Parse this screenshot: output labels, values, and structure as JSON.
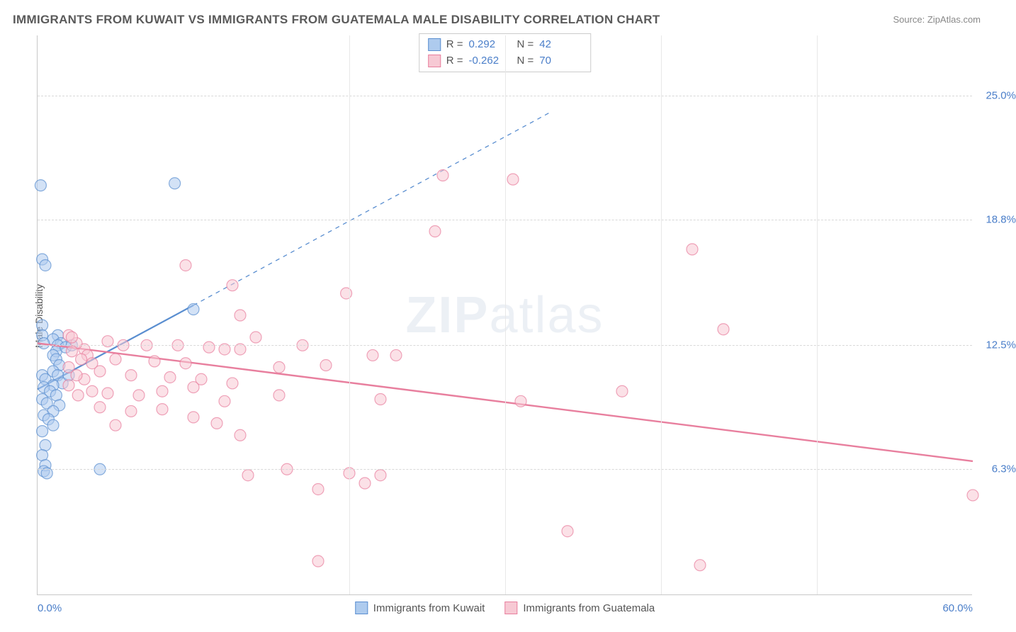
{
  "chart": {
    "type": "scatter",
    "title": "IMMIGRANTS FROM KUWAIT VS IMMIGRANTS FROM GUATEMALA MALE DISABILITY CORRELATION CHART",
    "source": "Source: ZipAtlas.com",
    "watermark_zip": "ZIP",
    "watermark_atlas": "atlas",
    "title_fontsize": 17,
    "title_color": "#5a5a5a",
    "source_color": "#888888",
    "background_color": "#ffffff",
    "grid_color": "#d8d8d8",
    "axis_color": "#c8c8c8",
    "tick_label_color": "#4a7ec9",
    "ylabel": "Male Disability",
    "ylabel_color": "#555555",
    "xlim": [
      0,
      60
    ],
    "ylim": [
      0,
      28
    ],
    "xticks": [
      0,
      60
    ],
    "xtick_labels": [
      "0.0%",
      "60.0%"
    ],
    "yticks": [
      6.3,
      12.5,
      18.8,
      25.0
    ],
    "ytick_labels": [
      "6.3%",
      "12.5%",
      "18.8%",
      "25.0%"
    ],
    "xgrid_positions": [
      20,
      30,
      40,
      50
    ],
    "marker_radius": 8,
    "marker_opacity": 0.55,
    "marker_stroke_width": 1.2,
    "series": [
      {
        "name": "Immigrants from Kuwait",
        "color_fill": "#aecbee",
        "color_stroke": "#5a8ed0",
        "r_label": "R =",
        "r_value": "0.292",
        "n_label": "N =",
        "n_value": "42",
        "trend": {
          "x1": 0,
          "y1": 10.3,
          "x2": 10,
          "y2": 14.5,
          "dash_x2": 33,
          "dash_y2": 24.2,
          "width": 2.2
        },
        "points": [
          [
            0.2,
            20.5
          ],
          [
            0.3,
            16.8
          ],
          [
            0.5,
            16.5
          ],
          [
            0.3,
            13.5
          ],
          [
            0.3,
            13.0
          ],
          [
            1.3,
            13.0
          ],
          [
            1.0,
            12.8
          ],
          [
            0.4,
            12.6
          ],
          [
            1.5,
            12.6
          ],
          [
            1.3,
            12.5
          ],
          [
            1.2,
            12.2
          ],
          [
            1.8,
            12.4
          ],
          [
            1.0,
            12.0
          ],
          [
            1.2,
            11.8
          ],
          [
            1.4,
            11.5
          ],
          [
            1.0,
            11.2
          ],
          [
            1.3,
            11.0
          ],
          [
            0.3,
            11.0
          ],
          [
            0.5,
            10.8
          ],
          [
            1.6,
            10.6
          ],
          [
            1.0,
            10.5
          ],
          [
            0.4,
            10.4
          ],
          [
            0.8,
            10.2
          ],
          [
            1.2,
            10.0
          ],
          [
            0.3,
            9.8
          ],
          [
            0.6,
            9.6
          ],
          [
            1.4,
            9.5
          ],
          [
            1.0,
            9.2
          ],
          [
            0.4,
            9.0
          ],
          [
            0.7,
            8.8
          ],
          [
            1.0,
            8.5
          ],
          [
            0.3,
            8.2
          ],
          [
            0.5,
            7.5
          ],
          [
            0.3,
            7.0
          ],
          [
            0.5,
            6.5
          ],
          [
            4.0,
            6.3
          ],
          [
            0.4,
            6.2
          ],
          [
            0.6,
            6.1
          ],
          [
            8.8,
            20.6
          ],
          [
            10.0,
            14.3
          ],
          [
            2.2,
            12.5
          ],
          [
            2.0,
            11.0
          ]
        ]
      },
      {
        "name": "Immigrants from Guatemala",
        "color_fill": "#f7c9d4",
        "color_stroke": "#e87f9e",
        "r_label": "R =",
        "r_value": "-0.262",
        "n_label": "N =",
        "n_value": "70",
        "trend": {
          "x1": 0,
          "y1": 12.6,
          "x2": 60,
          "y2": 6.7,
          "width": 2.4
        },
        "points": [
          [
            26.0,
            21.0
          ],
          [
            30.5,
            20.8
          ],
          [
            25.5,
            18.2
          ],
          [
            42.0,
            17.3
          ],
          [
            9.5,
            16.5
          ],
          [
            12.5,
            15.5
          ],
          [
            19.8,
            15.1
          ],
          [
            13.0,
            14.0
          ],
          [
            4.5,
            12.7
          ],
          [
            5.5,
            12.5
          ],
          [
            7.0,
            12.5
          ],
          [
            9.0,
            12.5
          ],
          [
            11.0,
            12.4
          ],
          [
            12.0,
            12.3
          ],
          [
            13.0,
            12.3
          ],
          [
            44.0,
            13.3
          ],
          [
            21.5,
            12.0
          ],
          [
            23.0,
            12.0
          ],
          [
            5.0,
            11.8
          ],
          [
            7.5,
            11.7
          ],
          [
            9.5,
            11.6
          ],
          [
            14.0,
            12.9
          ],
          [
            15.5,
            11.4
          ],
          [
            17.0,
            12.5
          ],
          [
            18.5,
            11.5
          ],
          [
            4.0,
            11.2
          ],
          [
            6.0,
            11.0
          ],
          [
            8.5,
            10.9
          ],
          [
            10.5,
            10.8
          ],
          [
            12.5,
            10.6
          ],
          [
            8.0,
            10.2
          ],
          [
            10.0,
            10.4
          ],
          [
            37.5,
            10.2
          ],
          [
            4.5,
            10.1
          ],
          [
            6.5,
            10.0
          ],
          [
            3.0,
            12.3
          ],
          [
            3.2,
            12.0
          ],
          [
            3.5,
            11.6
          ],
          [
            12.0,
            9.7
          ],
          [
            22.0,
            9.8
          ],
          [
            31.0,
            9.7
          ],
          [
            4.0,
            9.4
          ],
          [
            6.0,
            9.2
          ],
          [
            8.0,
            9.3
          ],
          [
            10.0,
            8.9
          ],
          [
            11.5,
            8.6
          ],
          [
            13.0,
            8.0
          ],
          [
            5.0,
            8.5
          ],
          [
            3.0,
            10.8
          ],
          [
            3.5,
            10.2
          ],
          [
            15.5,
            10.0
          ],
          [
            16.0,
            6.3
          ],
          [
            13.5,
            6.0
          ],
          [
            20.0,
            6.1
          ],
          [
            22.0,
            6.0
          ],
          [
            18.0,
            5.3
          ],
          [
            34.0,
            3.2
          ],
          [
            18.0,
            1.7
          ],
          [
            42.5,
            1.5
          ],
          [
            60.0,
            5.0
          ],
          [
            2.0,
            13.0
          ],
          [
            2.5,
            12.6
          ],
          [
            2.2,
            12.2
          ],
          [
            2.8,
            11.8
          ],
          [
            2.0,
            11.4
          ],
          [
            2.5,
            11.0
          ],
          [
            2.0,
            10.5
          ],
          [
            2.6,
            10.0
          ],
          [
            2.2,
            12.9
          ],
          [
            21.0,
            5.6
          ]
        ]
      }
    ],
    "legend": {
      "border_color": "#cccccc",
      "text_color": "#555555",
      "value_color": "#4a7ec9"
    }
  }
}
